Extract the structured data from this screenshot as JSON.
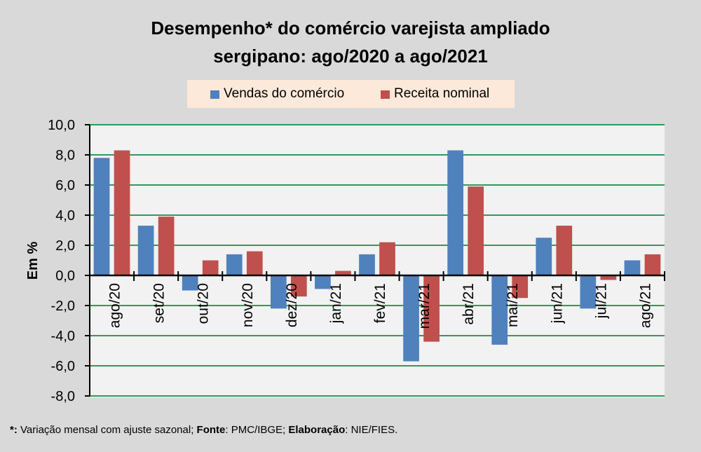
{
  "chart_data": {
    "type": "bar",
    "title_lines": [
      "Desempenho* do comércio varejista ampliado",
      "sergipano: ago/2020 a ago/2021"
    ],
    "xlabel": "",
    "ylabel": "Em %",
    "ylim": [
      -8,
      10
    ],
    "ytick_step": 2,
    "ytick_labels": [
      "-8,0",
      "-6,0",
      "-4,0",
      "-2,0",
      "0,0",
      "2,0",
      "4,0",
      "6,0",
      "8,0",
      "10,0"
    ],
    "grid": true,
    "gridline_color": "#2a9d5c",
    "legend_position": "top-center",
    "categories": [
      "ago/20",
      "set/20",
      "out/20",
      "nov/20",
      "dez/20",
      "jan/21",
      "fev/21",
      "mar/21",
      "abr/21",
      "mai/21",
      "jun/21",
      "jul/21",
      "ago/21"
    ],
    "series": [
      {
        "name": "Vendas do comércio",
        "color": "#4f81bd",
        "values": [
          7.8,
          3.3,
          -1.0,
          1.4,
          -2.2,
          -0.9,
          1.4,
          -5.7,
          8.3,
          -4.6,
          2.5,
          -2.2,
          1.0
        ]
      },
      {
        "name": "Receita nominal",
        "color": "#c0504d",
        "values": [
          8.3,
          3.9,
          1.0,
          1.6,
          -1.4,
          0.3,
          2.2,
          -4.4,
          5.9,
          -1.5,
          3.3,
          -0.3,
          1.4
        ]
      }
    ]
  },
  "footnote": {
    "segments": [
      {
        "text": "*:",
        "bold": true
      },
      {
        "text": " Variação mensal com ajuste sazonal; ",
        "bold": false
      },
      {
        "text": "Fonte",
        "bold": true
      },
      {
        "text": ": PMC/IBGE; ",
        "bold": false
      },
      {
        "text": "Elaboração",
        "bold": true
      },
      {
        "text": ": NIE/FIES.",
        "bold": false
      }
    ]
  }
}
